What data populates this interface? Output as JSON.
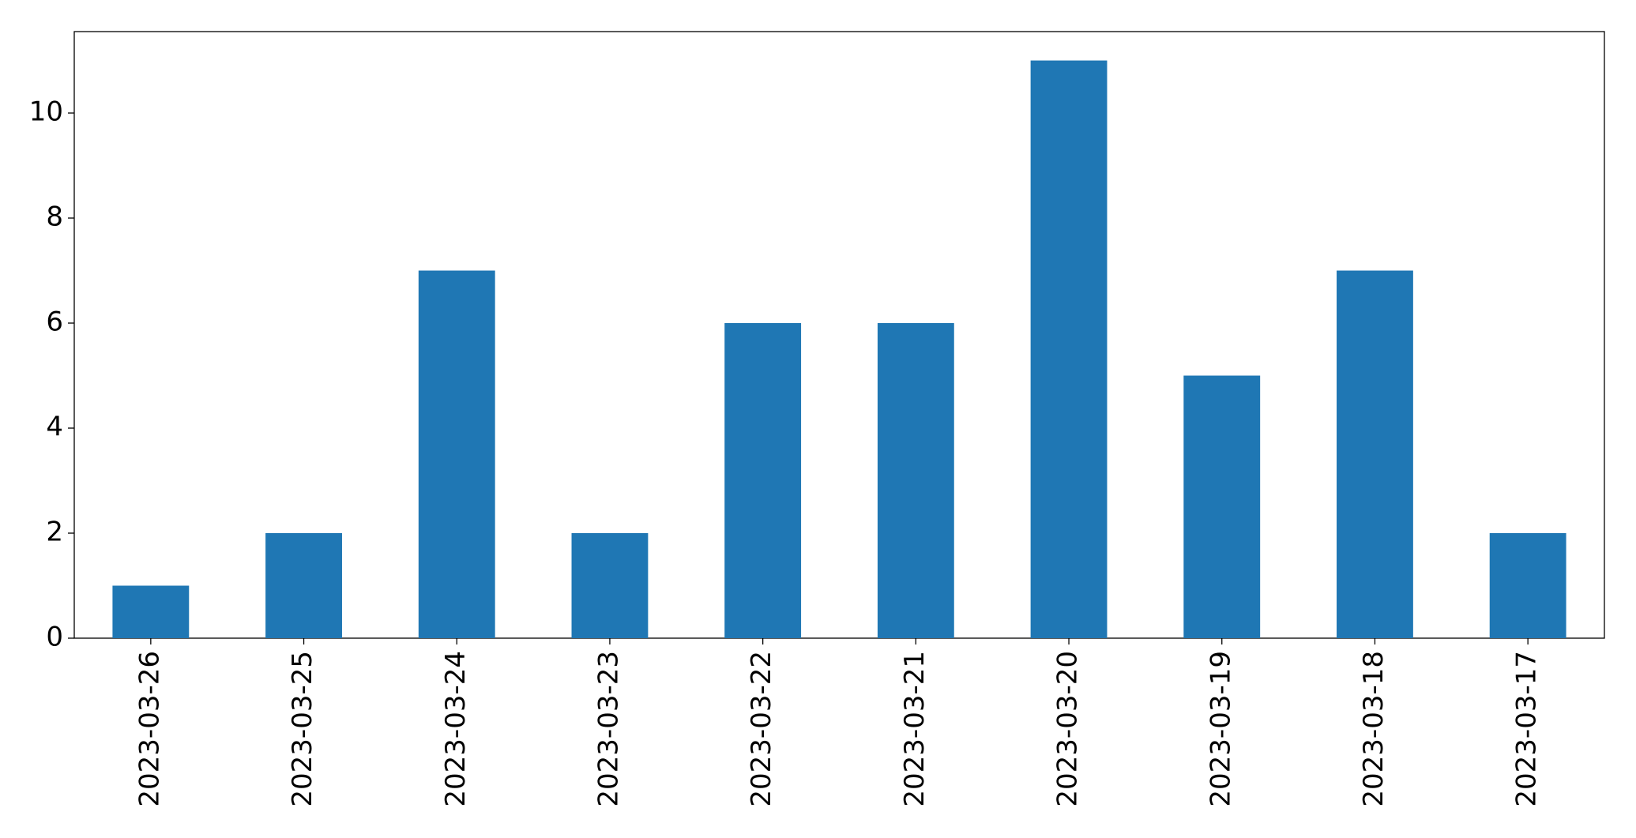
{
  "chart_data": {
    "type": "bar",
    "categories": [
      "2023-03-26",
      "2023-03-25",
      "2023-03-24",
      "2023-03-23",
      "2023-03-22",
      "2023-03-21",
      "2023-03-20",
      "2023-03-19",
      "2023-03-18",
      "2023-03-17"
    ],
    "values": [
      1,
      2,
      7,
      2,
      6,
      6,
      11,
      5,
      7,
      2
    ],
    "color": "#1f77b4",
    "ylim": [
      0,
      11.55
    ],
    "yticks": [
      0,
      2,
      4,
      6,
      8,
      10
    ],
    "grid": false
  }
}
